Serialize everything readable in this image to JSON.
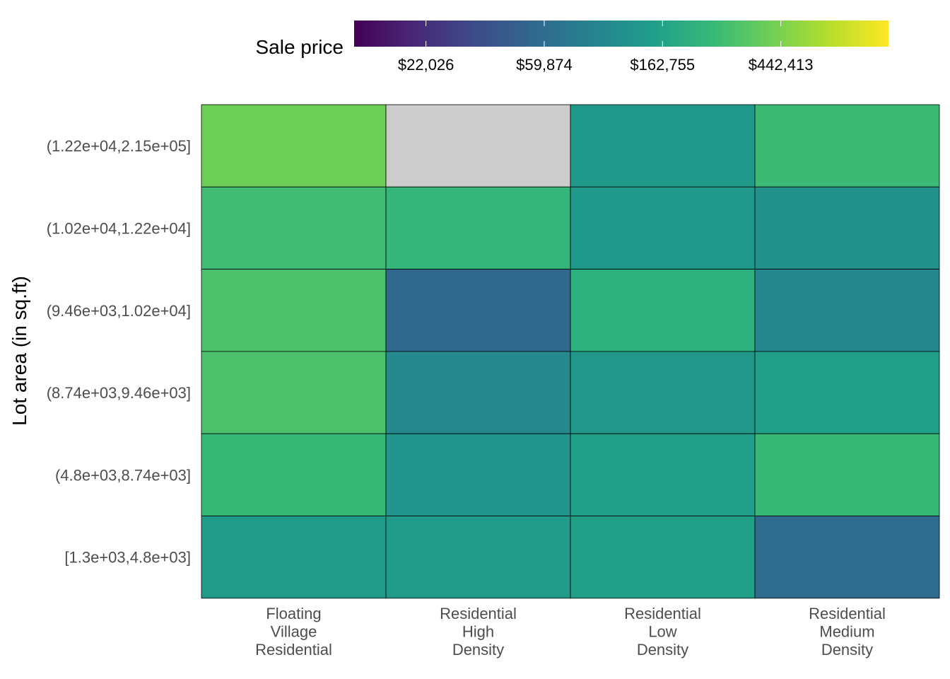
{
  "chart_data": {
    "type": "heatmap",
    "ylabel": "Lot area (in sq.ft)",
    "x_categories": [
      [
        "Floating",
        "Village",
        "Residential"
      ],
      [
        "Residential",
        "High",
        "Density"
      ],
      [
        "Residential",
        "Low",
        "Density"
      ],
      [
        "Residential",
        "Medium",
        "Density"
      ]
    ],
    "y_categories": [
      "(1.22e+04,2.15e+05]",
      "(1.02e+04,1.22e+04]",
      "(9.46e+03,1.02e+04]",
      "(8.74e+03,9.46e+03]",
      "(4.8e+03,8.74e+03]",
      "[1.3e+03,4.8e+03]"
    ],
    "values": [
      [
        400000,
        null,
        135000,
        260000
      ],
      [
        270000,
        240000,
        135000,
        115000
      ],
      [
        300000,
        55000,
        210000,
        95000
      ],
      [
        300000,
        100000,
        130000,
        150000
      ],
      [
        250000,
        125000,
        150000,
        250000
      ],
      [
        140000,
        140000,
        155000,
        58000
      ]
    ],
    "missing_color": "#cccccc",
    "legend": {
      "title": "Sale price",
      "position": "top",
      "scale": "log",
      "range": [
        12000,
        1100000
      ],
      "ticks": [
        22026,
        59874,
        162755,
        442413
      ],
      "tick_labels": [
        "$22,026",
        "$59,874",
        "$162,755",
        "$442,413"
      ],
      "palette": [
        "#440154",
        "#482878",
        "#3e4a89",
        "#31688e",
        "#26828e",
        "#1f9e89",
        "#35b779",
        "#6ece58",
        "#b5de2b",
        "#fde725"
      ]
    }
  }
}
